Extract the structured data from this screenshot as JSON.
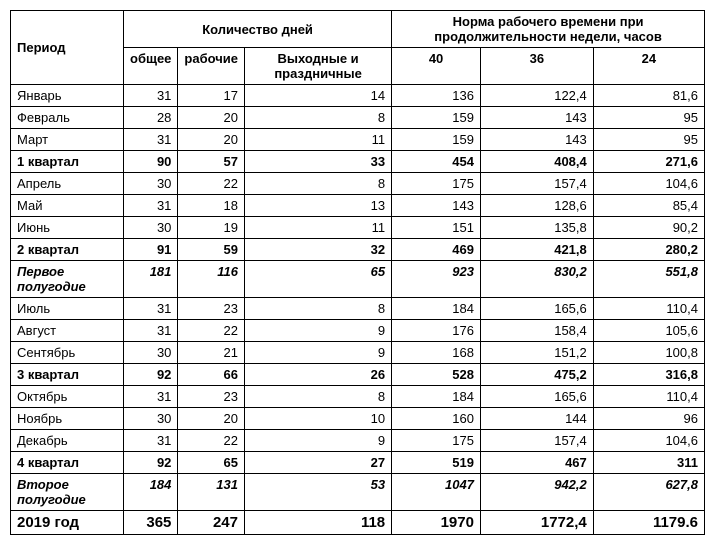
{
  "headers": {
    "period": "Период",
    "days_group": "Количество дней",
    "norm_group": "Норма рабочего времени при продолжительности недели, часов",
    "total": "общее",
    "work": "рабочие",
    "weekend": "Выходные и праздничные",
    "h40": "40",
    "h36": "36",
    "h24": "24"
  },
  "rows": [
    {
      "style": "normal",
      "period": "Январь",
      "total": "31",
      "work": "17",
      "weekend": "14",
      "h40": "136",
      "h36": "122,4",
      "h24": "81,6"
    },
    {
      "style": "normal",
      "period": "Февраль",
      "total": "28",
      "work": "20",
      "weekend": "8",
      "h40": "159",
      "h36": "143",
      "h24": "95"
    },
    {
      "style": "normal",
      "period": "Март",
      "total": "31",
      "work": "20",
      "weekend": "11",
      "h40": "159",
      "h36": "143",
      "h24": "95"
    },
    {
      "style": "bold",
      "period": "1 квартал",
      "total": "90",
      "work": "57",
      "weekend": "33",
      "h40": "454",
      "h36": "408,4",
      "h24": "271,6"
    },
    {
      "style": "normal",
      "period": "Апрель",
      "total": "30",
      "work": "22",
      "weekend": "8",
      "h40": "175",
      "h36": "157,4",
      "h24": "104,6"
    },
    {
      "style": "normal",
      "period": "Май",
      "total": "31",
      "work": "18",
      "weekend": "13",
      "h40": "143",
      "h36": "128,6",
      "h24": "85,4"
    },
    {
      "style": "normal",
      "period": "Июнь",
      "total": "30",
      "work": "19",
      "weekend": "11",
      "h40": "151",
      "h36": "135,8",
      "h24": "90,2"
    },
    {
      "style": "bold",
      "period": "2 квартал",
      "total": "91",
      "work": "59",
      "weekend": "32",
      "h40": "469",
      "h36": "421,8",
      "h24": "280,2"
    },
    {
      "style": "italic",
      "period": "Первое полугодие",
      "total": "181",
      "work": "116",
      "weekend": "65",
      "h40": "923",
      "h36": "830,2",
      "h24": "551,8"
    },
    {
      "style": "normal",
      "period": "Июль",
      "total": "31",
      "work": "23",
      "weekend": "8",
      "h40": "184",
      "h36": "165,6",
      "h24": "110,4"
    },
    {
      "style": "normal",
      "period": "Август",
      "total": "31",
      "work": "22",
      "weekend": "9",
      "h40": "176",
      "h36": "158,4",
      "h24": "105,6"
    },
    {
      "style": "normal",
      "period": "Сентябрь",
      "total": "30",
      "work": "21",
      "weekend": "9",
      "h40": "168",
      "h36": "151,2",
      "h24": "100,8"
    },
    {
      "style": "bold",
      "period": "3 квартал",
      "total": "92",
      "work": "66",
      "weekend": "26",
      "h40": "528",
      "h36": "475,2",
      "h24": "316,8"
    },
    {
      "style": "normal",
      "period": "Октябрь",
      "total": "31",
      "work": "23",
      "weekend": "8",
      "h40": "184",
      "h36": "165,6",
      "h24": "110,4"
    },
    {
      "style": "normal",
      "period": "Ноябрь",
      "total": "30",
      "work": "20",
      "weekend": "10",
      "h40": "160",
      "h36": "144",
      "h24": "96"
    },
    {
      "style": "normal",
      "period": "Декабрь",
      "total": "31",
      "work": "22",
      "weekend": "9",
      "h40": "175",
      "h36": "157,4",
      "h24": "104,6"
    },
    {
      "style": "bold",
      "period": "4 квартал",
      "total": "92",
      "work": "65",
      "weekend": "27",
      "h40": "519",
      "h36": "467",
      "h24": "311"
    },
    {
      "style": "italic",
      "period": "Второе полугодие",
      "total": "184",
      "work": "131",
      "weekend": "53",
      "h40": "1047",
      "h36": "942,2",
      "h24": "627,8"
    },
    {
      "style": "total",
      "period": "2019 год",
      "total": "365",
      "work": "247",
      "weekend": "118",
      "h40": "1970",
      "h36": "1772,4",
      "h24": "1179.6"
    }
  ]
}
